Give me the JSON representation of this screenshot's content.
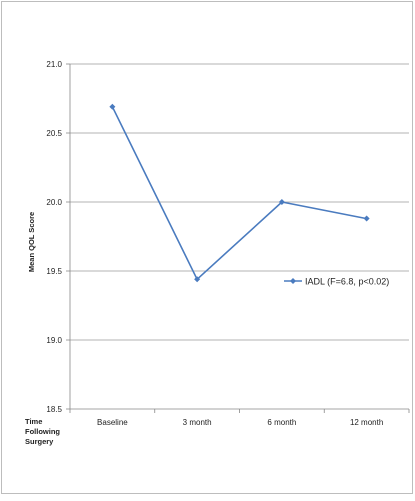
{
  "chart_data": {
    "type": "line",
    "title": "",
    "ylabel": "Mean QOL Score",
    "xlabel": "Time Following Surgery",
    "xlabel_lines": [
      "Time",
      "Following",
      "Surgery"
    ],
    "categories": [
      "Baseline",
      "3 month",
      "6 month",
      "12 month"
    ],
    "series": [
      {
        "name": "IADL (F=6.8, p<0.02)",
        "values": [
          20.69,
          19.44,
          20.0,
          19.88
        ],
        "color": "#4a7bbf"
      }
    ],
    "ylim": [
      18.5,
      21.0
    ],
    "yticks": [
      "18.5",
      "19.0",
      "19.5",
      "20.0",
      "20.5",
      "21.0"
    ],
    "grid": "horizontal",
    "legend_position": "right"
  }
}
